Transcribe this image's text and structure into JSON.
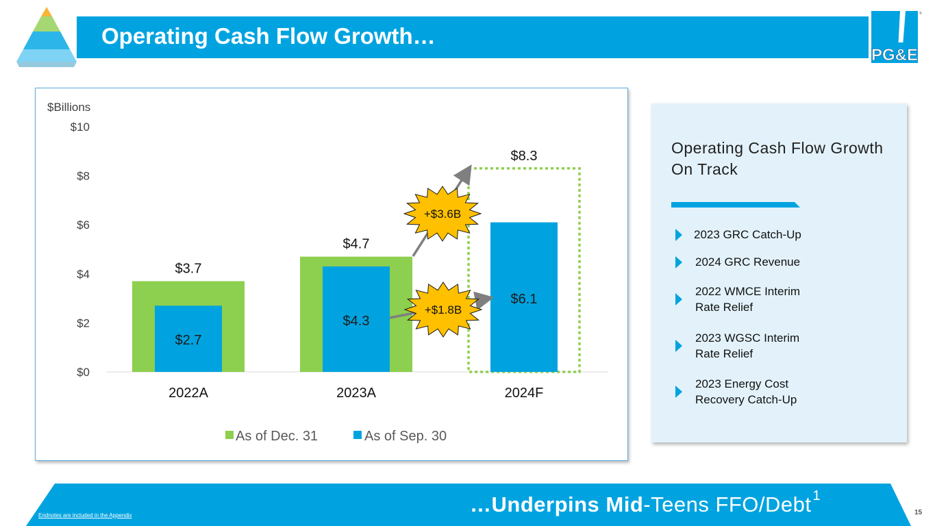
{
  "slide": {
    "title": "Operating Cash Flow Growth…",
    "footer": {
      "bold": "…Underpins Mid",
      "regular": "-Teens FFO/Debt",
      "superscript": "1"
    },
    "endnote": "Endnotes are included in the Appendix",
    "page_number": "15",
    "brand_color": "#00A3E0",
    "logo_text": "PG&E"
  },
  "chart_data": {
    "type": "bar",
    "unit_label": "$Billions",
    "categories": [
      "2022A",
      "2023A",
      "2024F"
    ],
    "series": [
      {
        "name": "As of Dec. 31",
        "color": "#8DCF4E",
        "values": [
          3.7,
          4.7,
          8.3
        ],
        "labels": [
          "$3.7",
          "$4.7",
          "$8.3"
        ],
        "note": "2024F shown as dotted outline"
      },
      {
        "name": "As of Sep. 30",
        "color": "#00A3E0",
        "values": [
          2.7,
          4.3,
          6.1
        ],
        "labels": [
          "$2.7",
          "$4.3",
          "$6.1"
        ]
      }
    ],
    "ylim": [
      0,
      10
    ],
    "yticks": [
      0,
      2,
      4,
      6,
      8,
      10
    ],
    "ytick_labels": [
      "$0",
      "$2",
      "$4",
      "$6",
      "$8",
      "$10"
    ],
    "annotations": [
      {
        "text": "+$3.6B",
        "from": "2023A Dec. 31",
        "to": "2024F Dec. 31"
      },
      {
        "text": "+$1.8B",
        "from": "2023A Sep. 30",
        "to": "2024F Sep. 30"
      }
    ],
    "legend_position": "bottom"
  },
  "panel": {
    "title": "Operating Cash Flow Growth On Track",
    "bullets": [
      "2023 GRC Catch-Up",
      "2024 GRC Revenue",
      "2022 WMCE Interim Rate Relief",
      "2023 WGSC Interim Rate Relief",
      "2023 Energy Cost Recovery Catch-Up"
    ]
  }
}
